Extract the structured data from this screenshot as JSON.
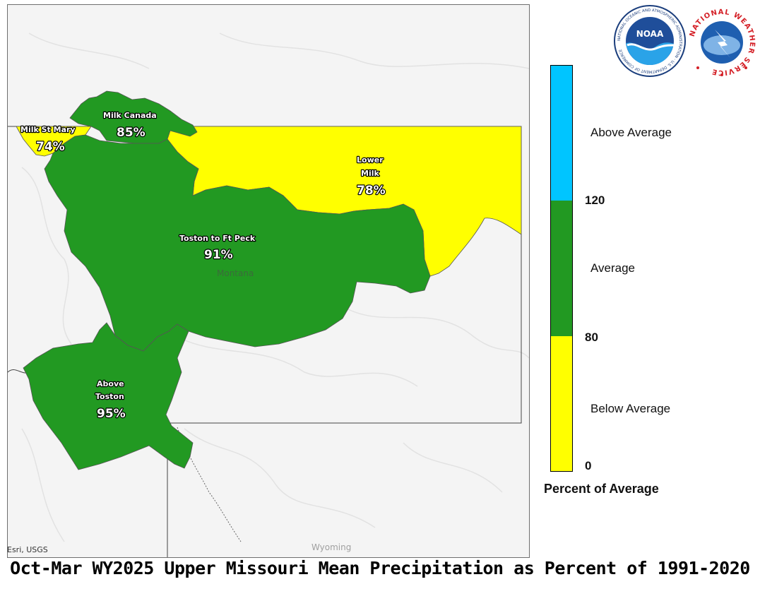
{
  "title": "Oct-Mar WY2025 Upper Missouri Mean Precipitation as Percent of 1991-2020",
  "credit": "Esri, USGS",
  "places": {
    "montana": "Montana",
    "wyoming": "Wyoming"
  },
  "basins": [
    {
      "id": "milk-st-mary",
      "name": "Milk St Mary",
      "percent": "74%",
      "category": "Below Average"
    },
    {
      "id": "milk-canada",
      "name": "Milk Canada",
      "percent": "85%",
      "category": "Average"
    },
    {
      "id": "lower-milk",
      "name_line1": "Lower",
      "name_line2": "Milk",
      "percent": "78%",
      "category": "Below Average"
    },
    {
      "id": "toston-ft-peck",
      "name": "Toston to Ft Peck",
      "percent": "91%",
      "category": "Average"
    },
    {
      "id": "above-toston",
      "name_line1": "Above",
      "name_line2": "Toston",
      "percent": "95%",
      "category": "Average"
    }
  ],
  "legend": {
    "title": "Percent of Average",
    "classes": [
      {
        "label": "Above Average",
        "color": "#00c5ff"
      },
      {
        "label": "Average",
        "color": "#229922"
      },
      {
        "label": "Below Average",
        "color": "#ffff00"
      }
    ],
    "breaks": [
      "120",
      "80",
      "0"
    ]
  },
  "logos": {
    "noaa": {
      "text": "NOAA",
      "ring_text": "NATIONAL OCEANIC AND ATMOSPHERIC ADMINISTRATION · U.S. DEPARTMENT OF COMMERCE"
    },
    "nws": {
      "ring_text": "NATIONAL WEATHER SERVICE"
    }
  },
  "colors": {
    "average": "#229922",
    "below": "#ffff00",
    "above": "#00c5ff",
    "background": "#f4f4f4"
  }
}
